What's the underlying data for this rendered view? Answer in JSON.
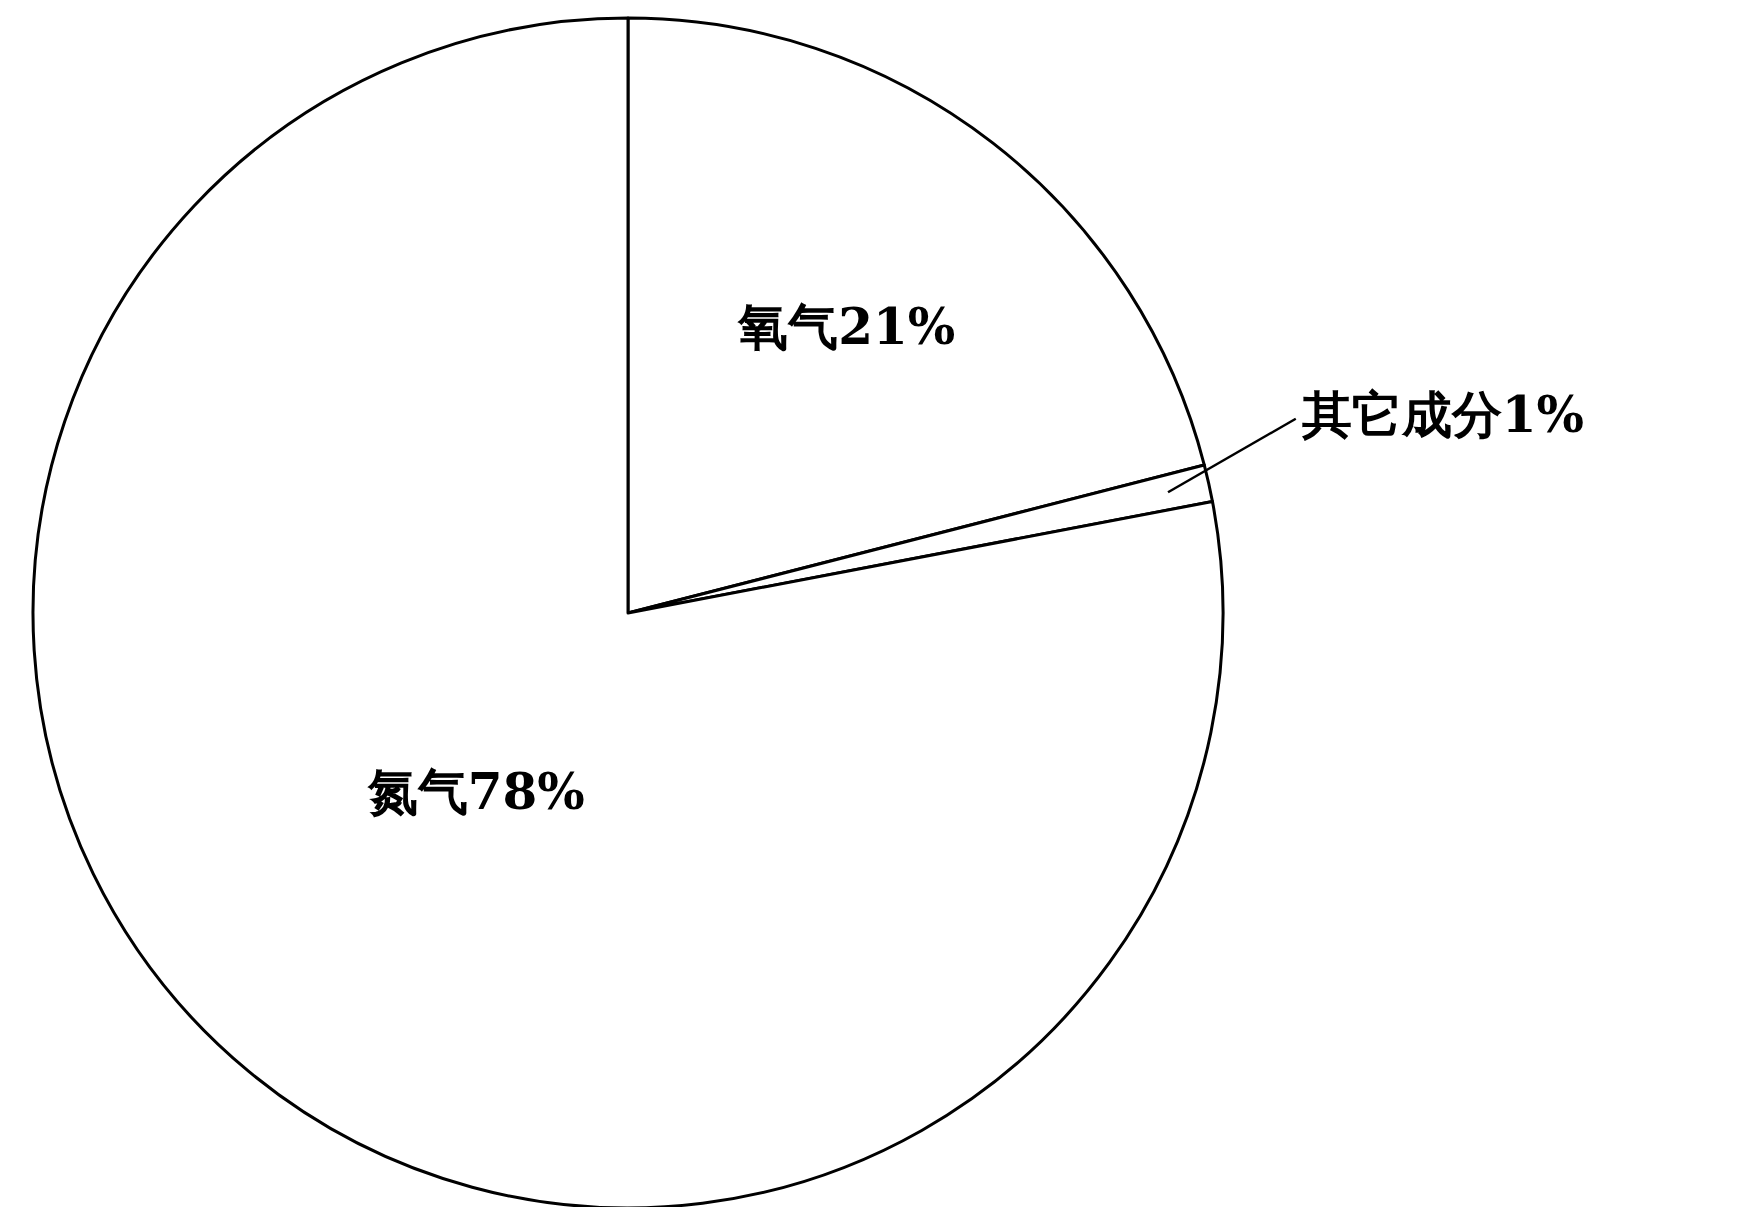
{
  "chart_data": {
    "type": "pie",
    "categories": [
      "氧气",
      "其它成分",
      "氮气"
    ],
    "values": [
      21,
      1,
      78
    ],
    "value_labels": [
      "21%",
      "1%",
      "78%"
    ],
    "colors": [
      "#ffffff",
      "#ffffff",
      "#ffffff"
    ]
  }
}
